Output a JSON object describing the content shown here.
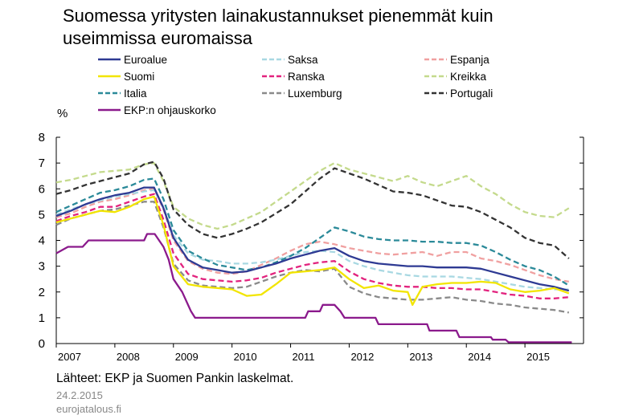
{
  "header": {
    "title": "Suomessa yritysten lainakustannukset pienemmät kuin\nuseimmissa euromaissa"
  },
  "footer": {
    "source": "Lähteet: EKP ja Suomen Pankin laskelmat.",
    "date": "24.2.2015",
    "site": "eurojatalous.fi"
  },
  "chart_data": {
    "type": "line",
    "title": "Suomessa yritysten lainakustannukset pienemmät kuin useimmissa euromaissa",
    "ylabel": "%",
    "ylim": [
      0,
      8
    ],
    "yticks": [
      0,
      1,
      2,
      3,
      4,
      5,
      6,
      7,
      8
    ],
    "xlim": [
      2007.0,
      2016.0
    ],
    "xticks": [
      "2007",
      "2008",
      "2009",
      "2010",
      "2011",
      "2012",
      "2013",
      "2014",
      "2015"
    ],
    "grid": false,
    "legend_position": "top",
    "series": [
      {
        "name": "Euroalue",
        "color": "#2e3a93",
        "dash": "solid",
        "x": [
          2007.0,
          2007.25,
          2007.5,
          2007.75,
          2008.0,
          2008.25,
          2008.5,
          2008.67,
          2008.83,
          2009.0,
          2009.25,
          2009.5,
          2009.75,
          2010.0,
          2010.25,
          2010.5,
          2010.75,
          2011.0,
          2011.25,
          2011.5,
          2011.75,
          2012.0,
          2012.25,
          2012.5,
          2012.75,
          2013.0,
          2013.25,
          2013.5,
          2013.75,
          2014.0,
          2014.25,
          2014.5,
          2014.75,
          2015.0,
          2015.25,
          2015.5,
          2015.75
        ],
        "y": [
          4.95,
          5.15,
          5.4,
          5.6,
          5.75,
          5.85,
          6.05,
          6.05,
          5.25,
          4.1,
          3.25,
          2.95,
          2.85,
          2.75,
          2.8,
          2.95,
          3.1,
          3.3,
          3.45,
          3.6,
          3.7,
          3.4,
          3.2,
          3.1,
          3.05,
          3.0,
          3.0,
          2.95,
          2.95,
          2.95,
          2.9,
          2.75,
          2.6,
          2.45,
          2.3,
          2.2,
          2.05
        ]
      },
      {
        "name": "Suomi",
        "color": "#f2e500",
        "dash": "solid",
        "x": [
          2007.0,
          2007.25,
          2007.5,
          2007.75,
          2008.0,
          2008.25,
          2008.5,
          2008.67,
          2008.83,
          2009.0,
          2009.25,
          2009.5,
          2009.75,
          2010.0,
          2010.25,
          2010.5,
          2010.75,
          2011.0,
          2011.25,
          2011.5,
          2011.75,
          2012.0,
          2012.25,
          2012.5,
          2012.75,
          2013.0,
          2013.08,
          2013.25,
          2013.5,
          2013.75,
          2014.0,
          2014.25,
          2014.5,
          2014.75,
          2015.0,
          2015.25,
          2015.5,
          2015.75
        ],
        "y": [
          4.7,
          4.85,
          5.0,
          5.15,
          5.1,
          5.3,
          5.6,
          5.7,
          4.6,
          3.0,
          2.3,
          2.2,
          2.15,
          2.1,
          1.85,
          1.9,
          2.3,
          2.75,
          2.8,
          2.85,
          2.95,
          2.5,
          2.15,
          2.25,
          2.05,
          2.0,
          1.5,
          2.2,
          2.3,
          2.35,
          2.35,
          2.4,
          2.35,
          2.1,
          2.0,
          2.05,
          2.15,
          1.95
        ]
      },
      {
        "name": "Italia",
        "color": "#2b8a99",
        "dash": "dash",
        "x": [
          2007.0,
          2007.25,
          2007.5,
          2007.75,
          2008.0,
          2008.25,
          2008.5,
          2008.67,
          2008.83,
          2009.0,
          2009.25,
          2009.5,
          2009.75,
          2010.0,
          2010.25,
          2010.5,
          2010.75,
          2011.0,
          2011.25,
          2011.5,
          2011.75,
          2012.0,
          2012.25,
          2012.5,
          2012.75,
          2013.0,
          2013.25,
          2013.5,
          2013.75,
          2014.0,
          2014.25,
          2014.5,
          2014.75,
          2015.0,
          2015.25,
          2015.5,
          2015.75
        ],
        "y": [
          5.1,
          5.35,
          5.6,
          5.85,
          5.95,
          6.1,
          6.35,
          6.4,
          5.6,
          4.4,
          3.6,
          3.3,
          3.05,
          2.95,
          2.85,
          2.95,
          3.15,
          3.4,
          3.7,
          4.1,
          4.5,
          4.35,
          4.15,
          4.05,
          4.0,
          4.0,
          3.95,
          3.95,
          3.9,
          3.9,
          3.8,
          3.55,
          3.25,
          3.0,
          2.85,
          2.6,
          2.25
        ]
      },
      {
        "name": "EKP:n ohjauskorko",
        "color": "#8b1a8c",
        "dash": "solid",
        "x": [
          2007.0,
          2007.2,
          2007.45,
          2007.55,
          2008.5,
          2008.55,
          2008.68,
          2008.83,
          2008.92,
          2009.0,
          2009.15,
          2009.3,
          2009.37,
          2011.25,
          2011.3,
          2011.5,
          2011.55,
          2011.75,
          2011.85,
          2011.92,
          2012.45,
          2012.5,
          2013.33,
          2013.37,
          2013.83,
          2013.88,
          2014.42,
          2014.45,
          2014.67,
          2014.72,
          2015.8
        ],
        "y": [
          3.5,
          3.75,
          3.75,
          4.0,
          4.0,
          4.25,
          4.25,
          3.75,
          3.25,
          2.5,
          2.0,
          1.25,
          1.0,
          1.0,
          1.25,
          1.25,
          1.5,
          1.5,
          1.25,
          1.0,
          1.0,
          0.75,
          0.75,
          0.5,
          0.5,
          0.25,
          0.25,
          0.15,
          0.15,
          0.05,
          0.05
        ]
      },
      {
        "name": "Saksa",
        "color": "#a8d8e2",
        "dash": "dash",
        "x": [
          2007.0,
          2007.25,
          2007.5,
          2007.75,
          2008.0,
          2008.25,
          2008.5,
          2008.67,
          2008.83,
          2009.0,
          2009.25,
          2009.5,
          2009.75,
          2010.0,
          2010.25,
          2010.5,
          2010.75,
          2011.0,
          2011.25,
          2011.5,
          2011.75,
          2012.0,
          2012.25,
          2012.5,
          2012.75,
          2013.0,
          2013.25,
          2013.5,
          2013.75,
          2014.0,
          2014.25,
          2014.5,
          2014.75,
          2015.0,
          2015.25,
          2015.5,
          2015.75
        ],
        "y": [
          5.0,
          5.2,
          5.4,
          5.55,
          5.7,
          5.8,
          5.9,
          5.95,
          5.3,
          4.2,
          3.5,
          3.25,
          3.2,
          3.1,
          3.1,
          3.15,
          3.25,
          3.4,
          3.55,
          3.6,
          3.55,
          3.2,
          3.0,
          2.85,
          2.75,
          2.65,
          2.6,
          2.6,
          2.6,
          2.55,
          2.5,
          2.4,
          2.3,
          2.2,
          2.15,
          2.1,
          2.1
        ]
      },
      {
        "name": "Ranska",
        "color": "#e2237e",
        "dash": "dash",
        "x": [
          2007.0,
          2007.25,
          2007.5,
          2007.75,
          2008.0,
          2008.25,
          2008.5,
          2008.67,
          2008.83,
          2009.0,
          2009.25,
          2009.5,
          2009.75,
          2010.0,
          2010.25,
          2010.5,
          2010.75,
          2011.0,
          2011.25,
          2011.5,
          2011.75,
          2012.0,
          2012.25,
          2012.5,
          2012.75,
          2013.0,
          2013.25,
          2013.5,
          2013.75,
          2014.0,
          2014.25,
          2014.5,
          2014.75,
          2015.0,
          2015.25,
          2015.5,
          2015.75
        ],
        "y": [
          4.75,
          4.95,
          5.1,
          5.3,
          5.3,
          5.5,
          5.7,
          5.8,
          4.8,
          3.5,
          2.7,
          2.5,
          2.45,
          2.4,
          2.45,
          2.55,
          2.75,
          2.9,
          3.05,
          3.15,
          3.2,
          2.8,
          2.5,
          2.35,
          2.25,
          2.2,
          2.2,
          2.15,
          2.15,
          2.1,
          2.1,
          2.0,
          1.9,
          1.85,
          1.75,
          1.75,
          1.8
        ]
      },
      {
        "name": "Luxemburg",
        "color": "#8a8a8a",
        "dash": "dash",
        "x": [
          2007.0,
          2007.25,
          2007.5,
          2007.75,
          2008.0,
          2008.25,
          2008.5,
          2008.67,
          2008.83,
          2009.0,
          2009.25,
          2009.5,
          2009.75,
          2010.0,
          2010.25,
          2010.5,
          2010.75,
          2011.0,
          2011.25,
          2011.5,
          2011.75,
          2012.0,
          2012.25,
          2012.5,
          2012.75,
          2013.0,
          2013.25,
          2013.5,
          2013.75,
          2014.0,
          2014.25,
          2014.5,
          2014.75,
          2015.0,
          2015.25,
          2015.5,
          2015.75
        ],
        "y": [
          4.6,
          4.85,
          5.0,
          5.15,
          5.2,
          5.35,
          5.5,
          5.5,
          4.5,
          3.1,
          2.45,
          2.25,
          2.2,
          2.15,
          2.2,
          2.4,
          2.6,
          2.75,
          2.85,
          2.8,
          2.9,
          2.2,
          1.95,
          1.8,
          1.75,
          1.7,
          1.7,
          1.75,
          1.8,
          1.7,
          1.65,
          1.55,
          1.5,
          1.4,
          1.35,
          1.3,
          1.2
        ]
      },
      {
        "name": "Espanja",
        "color": "#f0a0a0",
        "dash": "dash",
        "x": [
          2007.0,
          2007.25,
          2007.5,
          2007.75,
          2008.0,
          2008.25,
          2008.5,
          2008.67,
          2008.83,
          2009.0,
          2009.25,
          2009.5,
          2009.75,
          2010.0,
          2010.25,
          2010.5,
          2010.75,
          2011.0,
          2011.25,
          2011.5,
          2011.75,
          2012.0,
          2012.25,
          2012.5,
          2012.75,
          2013.0,
          2013.25,
          2013.5,
          2013.75,
          2014.0,
          2014.25,
          2014.5,
          2014.75,
          2015.0,
          2015.25,
          2015.5,
          2015.75
        ],
        "y": [
          4.9,
          5.05,
          5.3,
          5.5,
          5.6,
          5.75,
          5.95,
          6.0,
          5.2,
          4.0,
          3.2,
          2.9,
          2.75,
          2.7,
          2.8,
          3.05,
          3.3,
          3.6,
          3.85,
          3.95,
          3.85,
          3.7,
          3.6,
          3.5,
          3.45,
          3.5,
          3.55,
          3.4,
          3.55,
          3.55,
          3.3,
          3.2,
          3.05,
          2.85,
          2.65,
          2.5,
          2.4
        ]
      },
      {
        "name": "Kreikka",
        "color": "#c4da8c",
        "dash": "dash",
        "x": [
          2007.0,
          2007.25,
          2007.5,
          2007.75,
          2008.0,
          2008.25,
          2008.5,
          2008.67,
          2008.83,
          2009.0,
          2009.25,
          2009.5,
          2009.75,
          2010.0,
          2010.25,
          2010.5,
          2010.75,
          2011.0,
          2011.25,
          2011.5,
          2011.75,
          2012.0,
          2012.25,
          2012.5,
          2012.75,
          2013.0,
          2013.25,
          2013.5,
          2013.75,
          2014.0,
          2014.25,
          2014.5,
          2014.75,
          2015.0,
          2015.25,
          2015.5,
          2015.75
        ],
        "y": [
          6.25,
          6.35,
          6.5,
          6.65,
          6.7,
          6.75,
          6.95,
          7.0,
          6.3,
          5.3,
          4.85,
          4.6,
          4.45,
          4.6,
          4.85,
          5.1,
          5.5,
          5.9,
          6.3,
          6.7,
          7.0,
          6.75,
          6.6,
          6.45,
          6.3,
          6.5,
          6.25,
          6.1,
          6.3,
          6.5,
          6.1,
          5.8,
          5.4,
          5.1,
          4.95,
          4.9,
          5.25
        ]
      },
      {
        "name": "Portugali",
        "color": "#333333",
        "dash": "dash",
        "x": [
          2007.0,
          2007.25,
          2007.5,
          2007.75,
          2008.0,
          2008.25,
          2008.5,
          2008.67,
          2008.83,
          2009.0,
          2009.25,
          2009.5,
          2009.75,
          2010.0,
          2010.25,
          2010.5,
          2010.75,
          2011.0,
          2011.25,
          2011.5,
          2011.75,
          2012.0,
          2012.25,
          2012.5,
          2012.75,
          2013.0,
          2013.25,
          2013.5,
          2013.75,
          2014.0,
          2014.25,
          2014.5,
          2014.75,
          2015.0,
          2015.25,
          2015.5,
          2015.75
        ],
        "y": [
          5.8,
          5.95,
          6.15,
          6.3,
          6.45,
          6.6,
          6.95,
          7.05,
          6.4,
          5.2,
          4.6,
          4.25,
          4.1,
          4.25,
          4.45,
          4.7,
          5.05,
          5.4,
          5.9,
          6.4,
          6.8,
          6.6,
          6.4,
          6.15,
          5.9,
          5.85,
          5.75,
          5.55,
          5.35,
          5.3,
          5.1,
          4.8,
          4.5,
          4.1,
          3.9,
          3.8,
          3.3
        ]
      }
    ]
  }
}
